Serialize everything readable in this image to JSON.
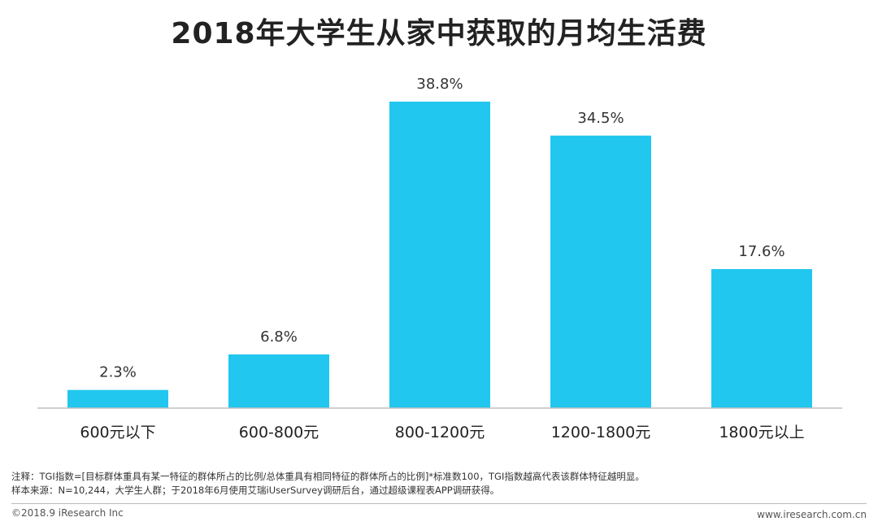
{
  "chart_data": {
    "type": "bar",
    "title": "2018年大学生从家中获取的月均生活费",
    "categories": [
      "600元以下",
      "600-800元",
      "800-1200元",
      "1200-1800元",
      "1800元以上"
    ],
    "values": [
      2.3,
      6.8,
      38.8,
      34.5,
      17.6
    ],
    "value_labels": [
      "2.3%",
      "6.8%",
      "38.8%",
      "34.5%",
      "17.6%"
    ],
    "unit": "%",
    "ylim": [
      0,
      38.8
    ],
    "grid": false,
    "bar_color": "#21c7ef",
    "axis_color": "#bfbfbf"
  },
  "notes": [
    "注释：TGI指数=[目标群体重具有某一特征的群体所占的比例/总体重具有相同特征的群体所占的比例]*标准数100，TGI指数越高代表该群体特征越明显。",
    "样本来源：N=10,244，大学生人群；于2018年6月使用艾瑞iUserSurvey调研后台，通过超级课程表APP调研获得。"
  ],
  "footer": {
    "copyright": "©2018.9 iResearch Inc",
    "website": "www.iresearch.com.cn"
  }
}
